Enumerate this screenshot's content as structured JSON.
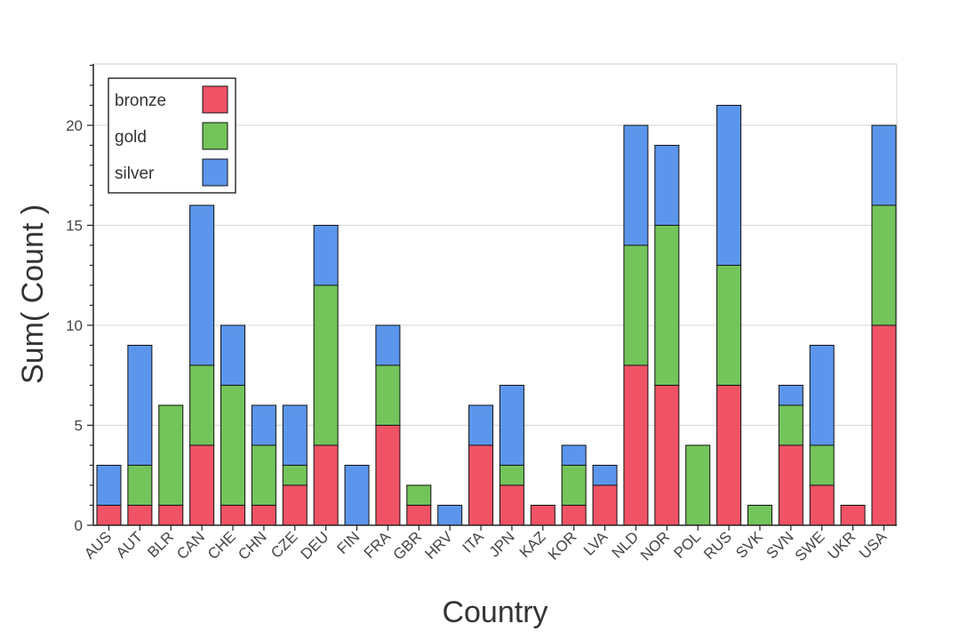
{
  "chart_data": {
    "type": "bar",
    "stacked": true,
    "title": "",
    "xlabel": "Country",
    "ylabel": "Sum( Count )",
    "ylim": [
      0,
      23
    ],
    "yticks": [
      0,
      5,
      10,
      15,
      20
    ],
    "grid": "horizontal",
    "legend_position": "top-left",
    "categories": [
      "AUS",
      "AUT",
      "BLR",
      "CAN",
      "CHE",
      "CHN",
      "CZE",
      "DEU",
      "FIN",
      "FRA",
      "GBR",
      "HRV",
      "ITA",
      "JPN",
      "KAZ",
      "KOR",
      "LVA",
      "NLD",
      "NOR",
      "POL",
      "RUS",
      "SVK",
      "SVN",
      "SWE",
      "UKR",
      "USA"
    ],
    "series": [
      {
        "name": "bronze",
        "color": "#f05365",
        "values": [
          1,
          1,
          1,
          4,
          1,
          1,
          2,
          4,
          0,
          5,
          1,
          0,
          4,
          2,
          1,
          1,
          2,
          8,
          7,
          0,
          7,
          0,
          4,
          2,
          1,
          10
        ]
      },
      {
        "name": "gold",
        "color": "#73c45a",
        "values": [
          0,
          2,
          5,
          4,
          6,
          3,
          1,
          8,
          0,
          3,
          1,
          0,
          0,
          1,
          0,
          2,
          0,
          6,
          8,
          4,
          6,
          1,
          2,
          2,
          0,
          6
        ]
      },
      {
        "name": "silver",
        "color": "#5c96ec",
        "values": [
          2,
          6,
          0,
          8,
          3,
          2,
          3,
          3,
          3,
          2,
          0,
          1,
          2,
          4,
          0,
          1,
          1,
          6,
          4,
          0,
          8,
          0,
          1,
          5,
          0,
          4
        ]
      }
    ]
  }
}
